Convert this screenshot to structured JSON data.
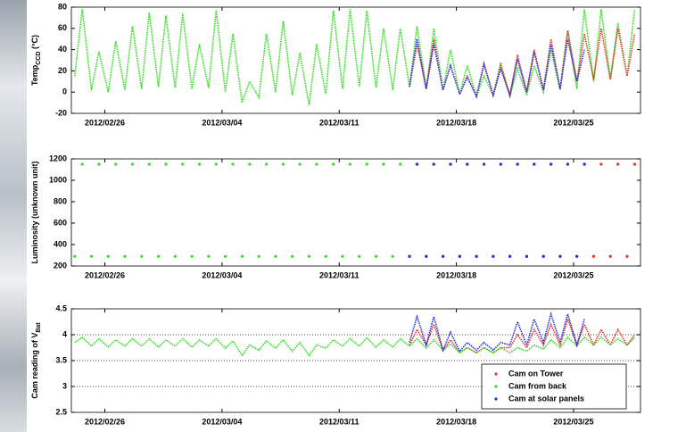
{
  "chart_data": [
    {
      "type": "line",
      "y_label": "Temp",
      "y_label_sub": "CCD",
      "y_label_unit": "(°C)",
      "xlim": [
        "2012/02/24",
        "2012/03/29"
      ],
      "xticks": [
        "2012/02/26",
        "2012/03/04",
        "2012/03/11",
        "2012/03/18",
        "2012/03/25"
      ],
      "ylim": [
        -20,
        80
      ],
      "yticks": [
        -20,
        0,
        20,
        40,
        60,
        80
      ],
      "grid": false,
      "x": [
        "2012/02/24",
        "2012/02/24",
        "2012/02/25",
        "2012/02/25",
        "2012/02/26",
        "2012/02/26",
        "2012/02/27",
        "2012/02/27",
        "2012/02/28",
        "2012/02/28",
        "2012/02/29",
        "2012/02/29",
        "2012/03/01",
        "2012/03/01",
        "2012/03/02",
        "2012/03/02",
        "2012/03/03",
        "2012/03/03",
        "2012/03/04",
        "2012/03/04",
        "2012/03/05",
        "2012/03/05",
        "2012/03/06",
        "2012/03/06",
        "2012/03/07",
        "2012/03/07",
        "2012/03/08",
        "2012/03/08",
        "2012/03/09",
        "2012/03/09",
        "2012/03/10",
        "2012/03/10",
        "2012/03/11",
        "2012/03/11",
        "2012/03/12",
        "2012/03/12",
        "2012/03/13",
        "2012/03/13",
        "2012/03/14",
        "2012/03/14",
        "2012/03/15",
        "2012/03/15",
        "2012/03/16",
        "2012/03/16",
        "2012/03/17",
        "2012/03/17",
        "2012/03/18",
        "2012/03/18",
        "2012/03/19",
        "2012/03/19",
        "2012/03/20",
        "2012/03/20",
        "2012/03/21",
        "2012/03/21",
        "2012/03/22",
        "2012/03/22",
        "2012/03/23",
        "2012/03/23",
        "2012/03/24",
        "2012/03/24",
        "2012/03/25",
        "2012/03/25",
        "2012/03/26",
        "2012/03/26",
        "2012/03/27",
        "2012/03/27",
        "2012/03/28",
        "2012/03/28"
      ],
      "series": [
        {
          "color": "#33dd22",
          "values": [
            15,
            78,
            2,
            38,
            0,
            48,
            2,
            62,
            3,
            75,
            5,
            72,
            4,
            74,
            3,
            45,
            4,
            77,
            0,
            55,
            -10,
            10,
            -5,
            55,
            0,
            67,
            -3,
            37,
            -12,
            45,
            -2,
            77,
            3,
            78,
            5,
            77,
            4,
            60,
            2,
            60,
            5,
            62,
            3,
            60,
            2,
            40,
            -2,
            25,
            -4,
            15,
            -3,
            28,
            -4,
            22,
            -3,
            25,
            0,
            40,
            2,
            58,
            3,
            78,
            10,
            78,
            12,
            65,
            15,
            78
          ]
        },
        {
          "color": "#e8362a",
          "values": [
            null,
            null,
            null,
            null,
            null,
            null,
            null,
            null,
            null,
            null,
            null,
            null,
            null,
            null,
            null,
            null,
            null,
            null,
            null,
            null,
            null,
            null,
            null,
            null,
            null,
            null,
            null,
            null,
            null,
            null,
            null,
            null,
            null,
            null,
            null,
            null,
            null,
            null,
            null,
            null,
            5,
            45,
            3,
            50,
            2,
            25,
            -2,
            15,
            -4,
            27,
            -3,
            25,
            -3,
            35,
            0,
            40,
            2,
            50,
            3,
            58,
            10,
            55,
            12,
            60,
            12,
            60,
            15,
            55
          ]
        },
        {
          "color": "#2233dd",
          "values": [
            null,
            null,
            null,
            null,
            null,
            null,
            null,
            null,
            null,
            null,
            null,
            null,
            null,
            null,
            null,
            null,
            null,
            null,
            null,
            null,
            null,
            null,
            null,
            null,
            null,
            null,
            null,
            null,
            null,
            null,
            null,
            null,
            null,
            null,
            null,
            null,
            null,
            null,
            null,
            null,
            5,
            50,
            3,
            45,
            2,
            25,
            -2,
            14,
            -4,
            26,
            -3,
            22,
            -3,
            31,
            0,
            38,
            2,
            45,
            3,
            50,
            10,
            40,
            null,
            null,
            null,
            null,
            null,
            null
          ]
        }
      ]
    },
    {
      "type": "scatter",
      "y_label": "Luminosity (unknown unit)",
      "xlim": [
        "2012/02/24",
        "2012/03/29"
      ],
      "xticks": [
        "2012/02/26",
        "2012/03/04",
        "2012/03/11",
        "2012/03/18",
        "2012/03/25"
      ],
      "ylim": [
        200,
        1200
      ],
      "yticks": [
        200,
        400,
        600,
        800,
        1000,
        1200
      ],
      "grid": false,
      "x": [
        "2012/02/24",
        "2012/02/24",
        "2012/02/25",
        "2012/02/25",
        "2012/02/26",
        "2012/02/26",
        "2012/02/27",
        "2012/02/27",
        "2012/02/28",
        "2012/02/28",
        "2012/02/29",
        "2012/02/29",
        "2012/03/01",
        "2012/03/01",
        "2012/03/02",
        "2012/03/02",
        "2012/03/03",
        "2012/03/03",
        "2012/03/04",
        "2012/03/04",
        "2012/03/05",
        "2012/03/05",
        "2012/03/06",
        "2012/03/06",
        "2012/03/07",
        "2012/03/07",
        "2012/03/08",
        "2012/03/08",
        "2012/03/09",
        "2012/03/09",
        "2012/03/10",
        "2012/03/10",
        "2012/03/11",
        "2012/03/11",
        "2012/03/12",
        "2012/03/12",
        "2012/03/13",
        "2012/03/13",
        "2012/03/14",
        "2012/03/14",
        "2012/03/15",
        "2012/03/15",
        "2012/03/16",
        "2012/03/16",
        "2012/03/17",
        "2012/03/17",
        "2012/03/18",
        "2012/03/18",
        "2012/03/19",
        "2012/03/19",
        "2012/03/20",
        "2012/03/20",
        "2012/03/21",
        "2012/03/21",
        "2012/03/22",
        "2012/03/22",
        "2012/03/23",
        "2012/03/23",
        "2012/03/24",
        "2012/03/24",
        "2012/03/25",
        "2012/03/25",
        "2012/03/26",
        "2012/03/26",
        "2012/03/27",
        "2012/03/27",
        "2012/03/28",
        "2012/03/28"
      ],
      "series": [
        {
          "color": "#33dd22",
          "values": [
            290,
            1150,
            290,
            1150,
            290,
            1150,
            290,
            1150,
            290,
            1150,
            290,
            1150,
            290,
            1150,
            290,
            1150,
            290,
            1150,
            290,
            1150,
            290,
            1150,
            290,
            1150,
            290,
            1150,
            290,
            1150,
            290,
            1150,
            290,
            1150,
            290,
            1150,
            290,
            1150,
            290,
            1150,
            290,
            1150,
            290,
            1150,
            290,
            1150,
            290,
            1150,
            290,
            1150,
            290,
            1150,
            290,
            1150,
            290,
            1150,
            290,
            1150,
            290,
            1150,
            290,
            1150,
            290,
            1150,
            290,
            1150,
            290,
            1150,
            290,
            1150
          ]
        },
        {
          "color": "#e8362a",
          "values": [
            null,
            null,
            null,
            null,
            null,
            null,
            null,
            null,
            null,
            null,
            null,
            null,
            null,
            null,
            null,
            null,
            null,
            null,
            null,
            null,
            null,
            null,
            null,
            null,
            null,
            null,
            null,
            null,
            null,
            null,
            null,
            null,
            null,
            null,
            null,
            null,
            null,
            null,
            null,
            null,
            290,
            1150,
            290,
            1150,
            290,
            1150,
            290,
            1150,
            290,
            1150,
            290,
            1150,
            290,
            1150,
            290,
            1150,
            290,
            1150,
            290,
            1150,
            290,
            1150,
            290,
            1150,
            290,
            1150,
            290,
            1150
          ]
        },
        {
          "color": "#2233dd",
          "values": [
            null,
            null,
            null,
            null,
            null,
            null,
            null,
            null,
            null,
            null,
            null,
            null,
            null,
            null,
            null,
            null,
            null,
            null,
            null,
            null,
            null,
            null,
            null,
            null,
            null,
            null,
            null,
            null,
            null,
            null,
            null,
            null,
            null,
            null,
            null,
            null,
            null,
            null,
            null,
            null,
            290,
            1150,
            290,
            1150,
            290,
            1150,
            290,
            1150,
            290,
            1150,
            290,
            1150,
            290,
            1150,
            290,
            1150,
            290,
            1150,
            290,
            1150,
            290,
            1150,
            null,
            null,
            null,
            null,
            null,
            null
          ]
        }
      ]
    },
    {
      "type": "line",
      "y_label": "Cam reading of V",
      "y_label_sub": "Bat",
      "xlim": [
        "2012/02/24",
        "2012/03/29"
      ],
      "xticks": [
        "2012/02/26",
        "2012/03/04",
        "2012/03/11",
        "2012/03/18",
        "2012/03/25"
      ],
      "ylim": [
        2.5,
        4.5
      ],
      "yticks": [
        2.5,
        3,
        3.5,
        4,
        4.5
      ],
      "grid": true,
      "legend": "lower right",
      "x": [
        "2012/02/24",
        "2012/02/24",
        "2012/02/25",
        "2012/02/25",
        "2012/02/26",
        "2012/02/26",
        "2012/02/27",
        "2012/02/27",
        "2012/02/28",
        "2012/02/28",
        "2012/02/29",
        "2012/02/29",
        "2012/03/01",
        "2012/03/01",
        "2012/03/02",
        "2012/03/02",
        "2012/03/03",
        "2012/03/03",
        "2012/03/04",
        "2012/03/04",
        "2012/03/05",
        "2012/03/05",
        "2012/03/06",
        "2012/03/06",
        "2012/03/07",
        "2012/03/07",
        "2012/03/08",
        "2012/03/08",
        "2012/03/09",
        "2012/03/09",
        "2012/03/10",
        "2012/03/10",
        "2012/03/11",
        "2012/03/11",
        "2012/03/12",
        "2012/03/12",
        "2012/03/13",
        "2012/03/13",
        "2012/03/14",
        "2012/03/14",
        "2012/03/15",
        "2012/03/15",
        "2012/03/16",
        "2012/03/16",
        "2012/03/17",
        "2012/03/17",
        "2012/03/18",
        "2012/03/18",
        "2012/03/19",
        "2012/03/19",
        "2012/03/20",
        "2012/03/20",
        "2012/03/21",
        "2012/03/21",
        "2012/03/22",
        "2012/03/22",
        "2012/03/23",
        "2012/03/23",
        "2012/03/24",
        "2012/03/24",
        "2012/03/25",
        "2012/03/25",
        "2012/03/26",
        "2012/03/26",
        "2012/03/27",
        "2012/03/27",
        "2012/03/28",
        "2012/03/28"
      ],
      "series": [
        {
          "name": "Cam on Tower",
          "color": "#e8362a",
          "values": [
            null,
            null,
            null,
            null,
            null,
            null,
            null,
            null,
            null,
            null,
            null,
            null,
            null,
            null,
            null,
            null,
            null,
            null,
            null,
            null,
            null,
            null,
            null,
            null,
            null,
            null,
            null,
            null,
            null,
            null,
            null,
            null,
            null,
            null,
            null,
            null,
            null,
            null,
            null,
            null,
            3.8,
            4.1,
            3.8,
            4.2,
            3.7,
            3.9,
            3.65,
            3.75,
            3.65,
            3.75,
            3.65,
            3.75,
            3.75,
            4.0,
            3.75,
            4.1,
            3.8,
            4.2,
            3.8,
            4.3,
            3.8,
            4.2,
            3.8,
            4.1,
            3.8,
            4.1,
            3.8,
            4.0
          ]
        },
        {
          "name": "Cam from back",
          "color": "#33dd22",
          "values": [
            3.85,
            3.95,
            3.78,
            3.92,
            3.76,
            3.9,
            3.78,
            3.92,
            3.78,
            3.92,
            3.76,
            3.9,
            3.78,
            3.92,
            3.76,
            3.9,
            3.78,
            3.92,
            3.74,
            3.88,
            3.6,
            3.8,
            3.7,
            3.88,
            3.74,
            3.9,
            3.68,
            3.85,
            3.6,
            3.8,
            3.74,
            3.9,
            3.78,
            3.92,
            3.78,
            3.94,
            3.76,
            3.9,
            3.76,
            3.92,
            3.78,
            3.92,
            3.74,
            3.9,
            3.7,
            3.82,
            3.65,
            3.75,
            3.65,
            3.75,
            3.65,
            3.75,
            3.65,
            3.75,
            3.68,
            3.8,
            3.72,
            3.9,
            3.75,
            3.95,
            3.78,
            3.95,
            3.8,
            3.95,
            3.8,
            3.92,
            3.8,
            3.95
          ]
        },
        {
          "name": "Cam at solar panels",
          "color": "#2233dd",
          "values": [
            null,
            null,
            null,
            null,
            null,
            null,
            null,
            null,
            null,
            null,
            null,
            null,
            null,
            null,
            null,
            null,
            null,
            null,
            null,
            null,
            null,
            null,
            null,
            null,
            null,
            null,
            null,
            null,
            null,
            null,
            null,
            null,
            null,
            null,
            null,
            null,
            null,
            null,
            null,
            null,
            3.85,
            4.35,
            3.8,
            4.35,
            3.7,
            4.05,
            3.68,
            3.85,
            3.7,
            3.85,
            3.7,
            3.85,
            3.8,
            4.25,
            3.8,
            4.3,
            3.85,
            4.4,
            3.85,
            4.4,
            3.8,
            4.3,
            null,
            null,
            null,
            null,
            null,
            null
          ]
        }
      ]
    }
  ]
}
